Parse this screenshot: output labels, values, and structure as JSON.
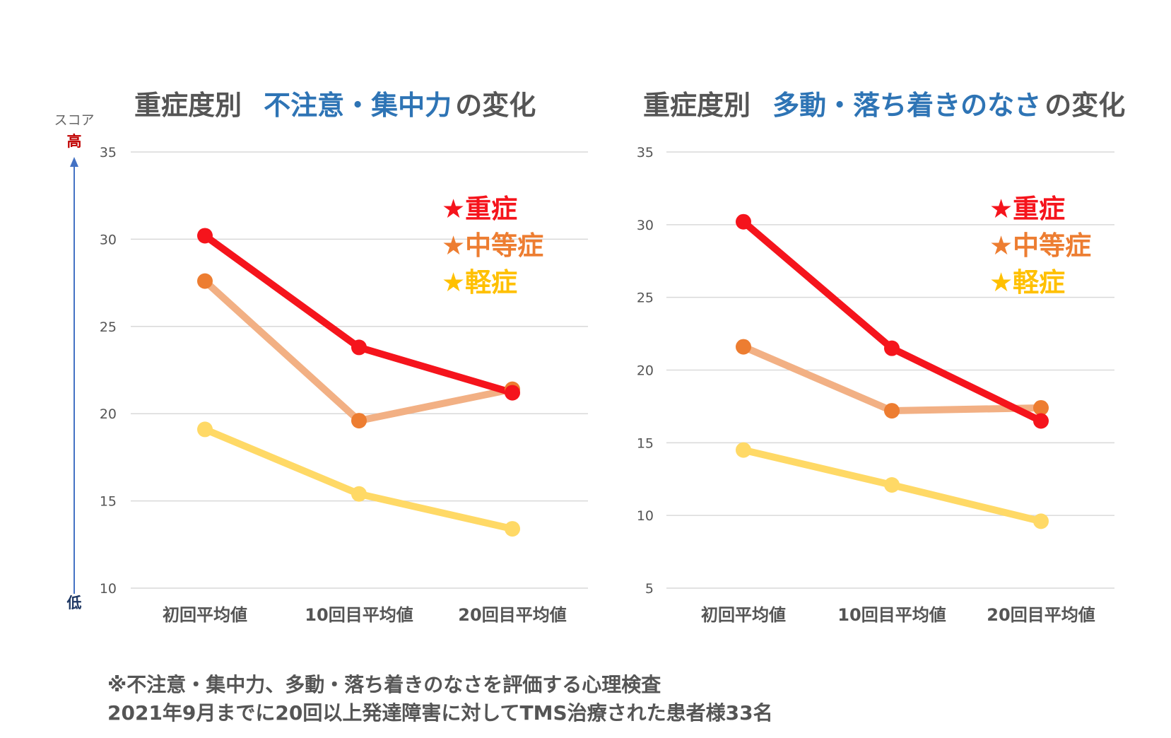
{
  "colors": {
    "severe": "#f5141c",
    "moderate": "#f2b084",
    "moderate_marker": "#ed7d31",
    "mild": "#ffd966",
    "mild_legend": "#ffc000",
    "title_accent": "#2e74b5",
    "arrow": "#4472c4",
    "high": "#c00000",
    "low": "#1f3864"
  },
  "score_axis": {
    "label": "スコア",
    "high": "高",
    "low": "低"
  },
  "chart_data": [
    {
      "type": "line",
      "title_prefix": "重症度別",
      "title_highlight": "不注意・集中力",
      "title_suffix": "の変化",
      "categories": [
        "初回平均値",
        "10回目平均値",
        "20回目平均値"
      ],
      "ylim": [
        10,
        35
      ],
      "yticks": [
        10,
        15,
        20,
        25,
        30,
        35
      ],
      "grid": true,
      "legend_placement": "top-right",
      "series": [
        {
          "name": "★重症",
          "key": "severe",
          "values": [
            30.2,
            23.8,
            21.2
          ]
        },
        {
          "name": "★中等症",
          "key": "moderate",
          "values": [
            27.6,
            19.6,
            21.4
          ]
        },
        {
          "name": "★軽症",
          "key": "mild",
          "values": [
            19.1,
            15.4,
            13.4
          ]
        }
      ]
    },
    {
      "type": "line",
      "title_prefix": "重症度別",
      "title_highlight": "多動・落ち着きのなさ",
      "title_suffix": "の変化",
      "categories": [
        "初回平均値",
        "10回目平均値",
        "20回目平均値"
      ],
      "ylim": [
        5,
        35
      ],
      "yticks": [
        5,
        10,
        15,
        20,
        25,
        30,
        35
      ],
      "grid": true,
      "legend_placement": "top-right",
      "series": [
        {
          "name": "★重症",
          "key": "severe",
          "values": [
            30.2,
            21.5,
            16.5
          ]
        },
        {
          "name": "★中等症",
          "key": "moderate",
          "values": [
            21.6,
            17.2,
            17.4
          ]
        },
        {
          "name": "★軽症",
          "key": "mild",
          "values": [
            14.5,
            12.1,
            9.6
          ]
        }
      ]
    }
  ],
  "footnote": {
    "line1": "※不注意・集中力、多動・落ち着きのなさを評価する心理検査",
    "line2": "2021年9月までに20回以上発達障害に対してTMS治療された患者様33名"
  }
}
